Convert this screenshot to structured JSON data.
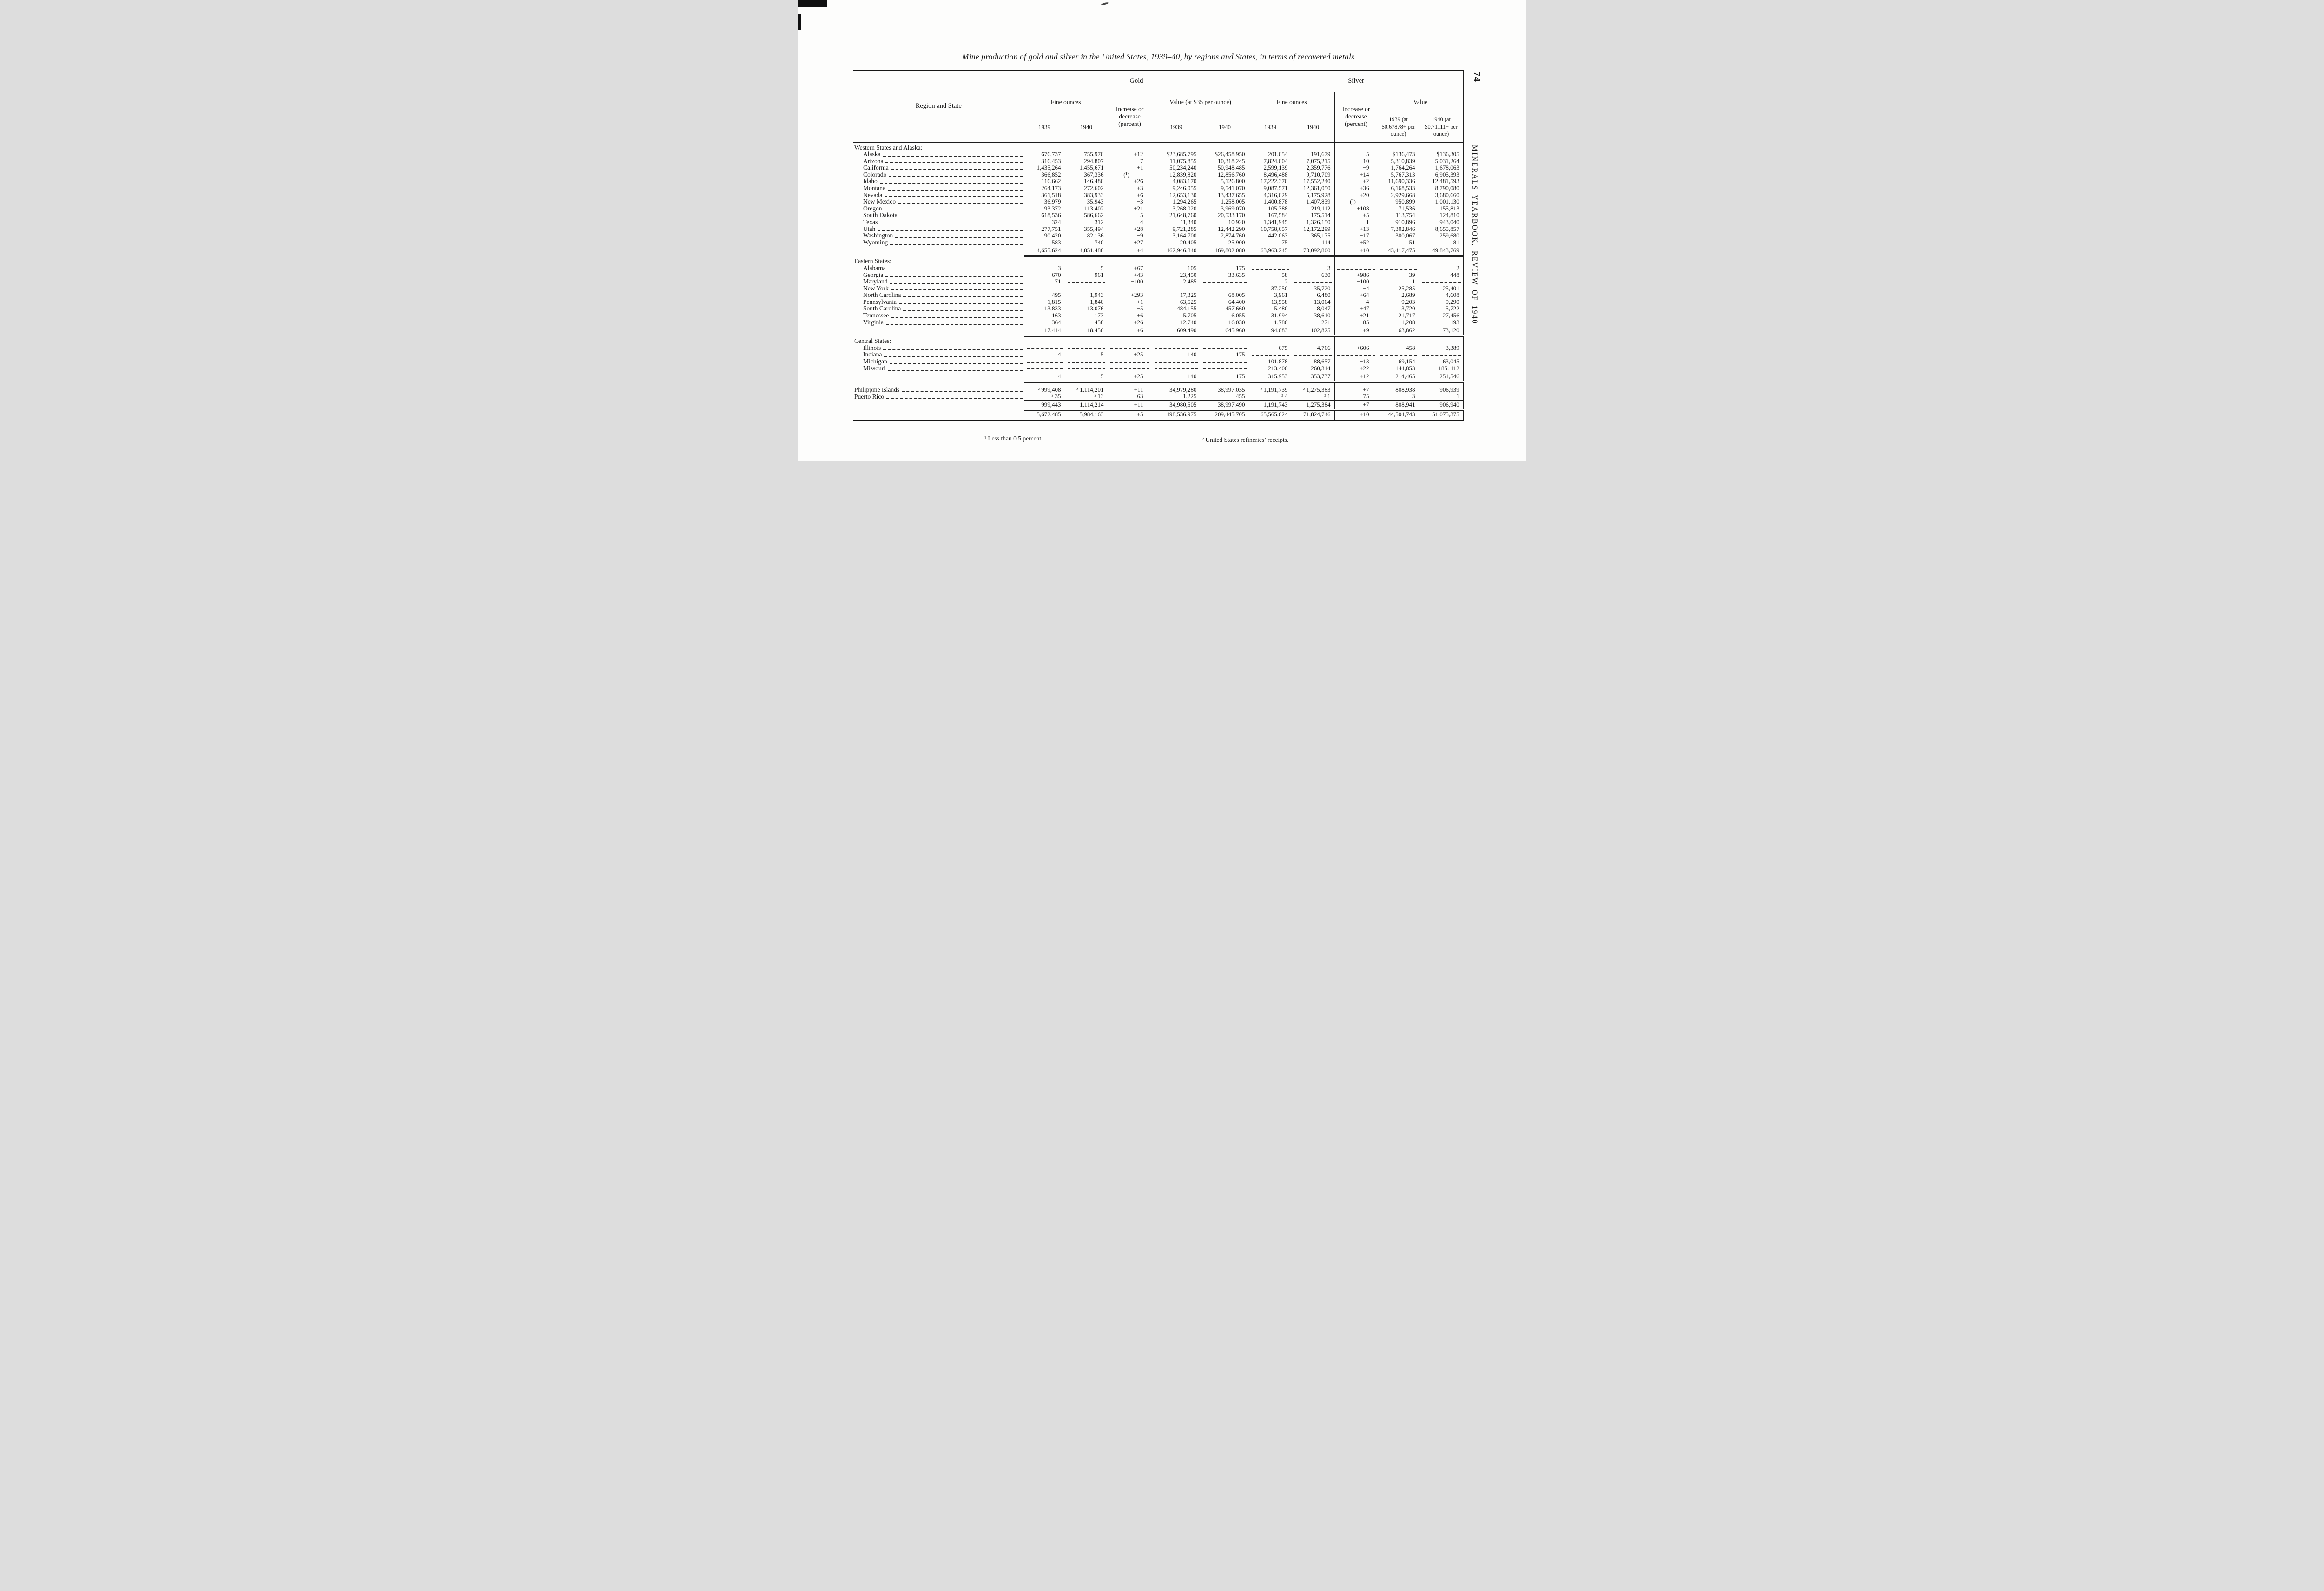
{
  "page": {
    "page_number": "74",
    "journal_title": "MINERALS YEARBOOK, REVIEW OF 1940",
    "title": "Mine production of gold and silver in the United States, 1939–40, by regions and States, in terms of recovered metals",
    "footnote_1": "¹ Less than 0.5 percent.",
    "footnote_2": "² United States refineries’ receipts."
  },
  "table": {
    "stub_header": "Region and State",
    "header": {
      "gold": {
        "label": "Gold",
        "fine_ounces": "Fine ounces",
        "increase": "Increase or decrease (percent)",
        "value": "Value (at $35 per ounce)",
        "years": [
          "1939",
          "1940"
        ],
        "value_years": [
          "1939",
          "1940"
        ]
      },
      "silver": {
        "label": "Silver",
        "fine_ounces": "Fine ounces",
        "increase": "Increase or decrease (percent)",
        "value": "Value",
        "years": [
          "1939",
          "1940"
        ],
        "value_years": [
          "1939 (at $0.67878+ per ounce)",
          "1940 (at $0.71111+ per ounce)"
        ]
      }
    },
    "sections": [
      {
        "heading": "Western States and Alaska:",
        "indent": true,
        "rows": [
          {
            "label": "Alaska",
            "cells": [
              "676,737",
              "755,970",
              "+12",
              "$23,685,795",
              "$26,458,950",
              "201,054",
              "191,679",
              "−5",
              "$136,473",
              "$136,305"
            ]
          },
          {
            "label": "Arizona",
            "cells": [
              "316,453",
              "294,807",
              "−7",
              "11,075,855",
              "10,318,245",
              "7,824,004",
              "7,075,215",
              "−10",
              "5,310,839",
              "5,031,264"
            ]
          },
          {
            "label": "California",
            "cells": [
              "1,435,264",
              "1,455,671",
              "+1",
              "50,234,240",
              "50,948,485",
              "2,599,139",
              "2,359,776",
              "−9",
              "1,764,264",
              "1,678,063"
            ]
          },
          {
            "label": "Colorado",
            "cells": [
              "366,852",
              "367,336",
              "(¹)",
              "12,839,820",
              "12,856,760",
              "8,496,488",
              "9,710,709",
              "+14",
              "5,767,313",
              "6,905,393"
            ]
          },
          {
            "label": "Idaho",
            "cells": [
              "116,662",
              "146,480",
              "+26",
              "4,083,170",
              "5,126,800",
              "17,222,370",
              "17,552,240",
              "+2",
              "11,690,336",
              "12,481,593"
            ]
          },
          {
            "label": "Montana",
            "cells": [
              "264,173",
              "272,602",
              "+3",
              "9,246,055",
              "9,541,070",
              "9,087,571",
              "12,361,050",
              "+36",
              "6,168,533",
              "8,790,080"
            ]
          },
          {
            "label": "Nevada",
            "cells": [
              "361,518",
              "383,933",
              "+6",
              "12,653,130",
              "13,437,655",
              "4,316,029",
              "5,175,928",
              "+20",
              "2,929,668",
              "3,680,660"
            ]
          },
          {
            "label": "New Mexico",
            "cells": [
              "36,979",
              "35,943",
              "−3",
              "1,294,265",
              "1,258,005",
              "1,400,878",
              "1,407,839",
              "(¹)",
              "950,899",
              "1,001,130"
            ]
          },
          {
            "label": "Oregon",
            "cells": [
              "93,372",
              "113,402",
              "+21",
              "3,268,020",
              "3,969,070",
              "105,388",
              "219,112",
              "+108",
              "71,536",
              "155,813"
            ]
          },
          {
            "label": "South Dakota",
            "cells": [
              "618,536",
              "586,662",
              "−5",
              "21,648,760",
              "20,533,170",
              "167,584",
              "175,514",
              "+5",
              "113,754",
              "124,810"
            ]
          },
          {
            "label": "Texas",
            "cells": [
              "324",
              "312",
              "−4",
              "11,340",
              "10,920",
              "1,341,945",
              "1,326,150",
              "−1",
              "910,896",
              "943,040"
            ]
          },
          {
            "label": "Utah",
            "cells": [
              "277,751",
              "355,494",
              "+28",
              "9,721,285",
              "12,442,290",
              "10,758,657",
              "12,172,299",
              "+13",
              "7,302,846",
              "8,655,857"
            ]
          },
          {
            "label": "Washington",
            "cells": [
              "90,420",
              "82,136",
              "−9",
              "3,164,700",
              "2,874,760",
              "442,063",
              "365,175",
              "−17",
              "300,067",
              "259,680"
            ]
          },
          {
            "label": "Wyoming",
            "cells": [
              "583",
              "740",
              "+27",
              "20,405",
              "25,900",
              "75",
              "114",
              "+52",
              "51",
              "81"
            ]
          }
        ],
        "total": [
          "4,655,624",
          "4,851,488",
          "+4",
          "162,946,840",
          "169,802,080",
          "63,963,245",
          "70,092,800",
          "+10",
          "43,417,475",
          "49,843,769"
        ]
      },
      {
        "heading": "Eastern States:",
        "indent": true,
        "rows": [
          {
            "label": "Alabama",
            "cells": [
              "3",
              "5",
              "+67",
              "105",
              "175",
              null,
              "3",
              null,
              null,
              "2"
            ]
          },
          {
            "label": "Georgia",
            "cells": [
              "670",
              "961",
              "+43",
              "23,450",
              "33,635",
              "58",
              "630",
              "+986",
              "39",
              "448"
            ]
          },
          {
            "label": "Maryland",
            "cells": [
              "71",
              null,
              "−100",
              "2,485",
              null,
              "2",
              null,
              "−100",
              "1",
              null
            ]
          },
          {
            "label": "New York",
            "cells": [
              null,
              null,
              null,
              null,
              null,
              "37,250",
              "35,720",
              "−4",
              "25,285",
              "25,401"
            ]
          },
          {
            "label": "North Carolina",
            "cells": [
              "495",
              "1,943",
              "+293",
              "17,325",
              "68,005",
              "3,961",
              "6,480",
              "+64",
              "2,689",
              "4,608"
            ]
          },
          {
            "label": "Pennsylvania",
            "cells": [
              "1,815",
              "1,840",
              "+1",
              "63,525",
              "64,400",
              "13,558",
              "13,064",
              "−4",
              "9,203",
              "9,290"
            ]
          },
          {
            "label": "South Carolina",
            "cells": [
              "13,833",
              "13,076",
              "−5",
              "484,155",
              "457,660",
              "5,480",
              "8,047",
              "+47",
              "3,720",
              "5,722"
            ]
          },
          {
            "label": "Tennessee",
            "cells": [
              "163",
              "173",
              "+6",
              "5,705",
              "6,055",
              "31,994",
              "38,610",
              "+21",
              "21,717",
              "27,456"
            ]
          },
          {
            "label": "Virginia",
            "cells": [
              "364",
              "458",
              "+26",
              "12,740",
              "16,030",
              "1,780",
              "271",
              "−85",
              "1,208",
              "193"
            ]
          }
        ],
        "total": [
          "17,414",
          "18,456",
          "+6",
          "609,490",
          "645,960",
          "94,083",
          "102,825",
          "+9",
          "63,862",
          "73,120"
        ]
      },
      {
        "heading": "Central States:",
        "indent": true,
        "rows": [
          {
            "label": "Illinois",
            "cells": [
              null,
              null,
              null,
              null,
              null,
              "675",
              "4,766",
              "+606",
              "458",
              "3,389"
            ]
          },
          {
            "label": "Indiana",
            "cells": [
              "4",
              "5",
              "+25",
              "140",
              "175",
              null,
              null,
              null,
              null,
              null
            ]
          },
          {
            "label": "Michigan",
            "cells": [
              null,
              null,
              null,
              null,
              null,
              "101,878",
              "88,657",
              "−13",
              "69,154",
              "63,045"
            ]
          },
          {
            "label": "Missouri",
            "cells": [
              null,
              null,
              null,
              null,
              null,
              "213,400",
              "260,314",
              "+22",
              "144,853",
              "185. 112"
            ]
          }
        ],
        "total": [
          "4",
          "5",
          "+25",
          "140",
          "175",
          "315,953",
          "353,737",
          "+12",
          "214,465",
          "251,546"
        ]
      },
      {
        "heading": null,
        "indent": false,
        "rows": [
          {
            "label": "Philippine Islands",
            "cells": [
              "² 999,408",
              "² 1,114,201",
              "+11",
              "34,979,280",
              "38,997,035",
              "² 1,191,739",
              "² 1,275,383",
              "+7",
              "808,938",
              "906,939"
            ]
          },
          {
            "label": "Puerto Rico",
            "cells": [
              "² 35",
              "² 13",
              "−63",
              "1,225",
              "455",
              "² 4",
              "² 1",
              "−75",
              "3",
              "1"
            ]
          }
        ],
        "total": [
          "999,443",
          "1,114,214",
          "+11",
          "34,980,505",
          "38,997,490",
          "1,191,743",
          "1,275,384",
          "+7",
          "808,941",
          "906,940"
        ]
      }
    ],
    "grand_total": [
      "5,672,485",
      "5,984,163",
      "+5",
      "198,536,975",
      "209,445,705",
      "65,565,024",
      "71,824,746",
      "+10",
      "44,504,743",
      "51,075,375"
    ]
  }
}
